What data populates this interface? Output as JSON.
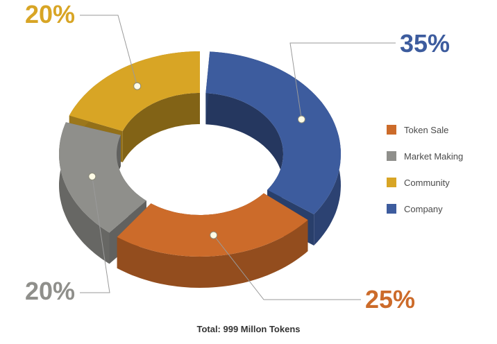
{
  "chart_data": {
    "type": "pie",
    "variant": "3d-donut",
    "title": "",
    "subtitle": "Total: 999 Millon Tokens",
    "categories": [
      "Token Sale",
      "Market Making",
      "Community",
      "Company"
    ],
    "values": [
      25,
      20,
      20,
      35
    ],
    "value_labels": [
      "25%",
      "20%",
      "20%",
      "35%"
    ],
    "colors": [
      "#cc6b2a",
      "#8f8f8b",
      "#d8a525",
      "#3d5c9e"
    ],
    "legend_position": "right"
  }
}
